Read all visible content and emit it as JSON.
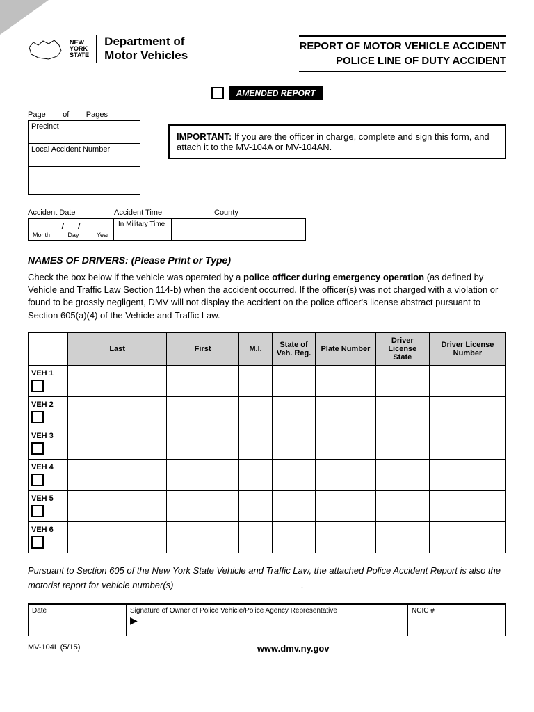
{
  "header": {
    "state_short": "NEW YORK STATE",
    "dept_l1": "Department of",
    "dept_l2": "Motor Vehicles",
    "title_l1": "REPORT OF MOTOR VEHICLE ACCIDENT",
    "title_l2": "POLICE LINE OF DUTY ACCIDENT"
  },
  "amended": "AMENDED REPORT",
  "page_info": {
    "page": "Page",
    "of": "of",
    "pages": "Pages"
  },
  "precinct": {
    "label": "Precinct",
    "lan": "Local Accident Number"
  },
  "important": {
    "bold": "IMPORTANT:",
    "text": "  If you are the officer in charge, complete and sign this form, and attach it to the MV-104A or MV-104AN."
  },
  "date": {
    "label": "Accident Date",
    "month": "Month",
    "day": "Day",
    "year": "Year",
    "slash": "/"
  },
  "time": {
    "label": "Accident Time",
    "sub": "In Military Time"
  },
  "county": {
    "label": "County"
  },
  "drivers_heading": "NAMES OF DRIVERS:  (Please Print or Type)",
  "drivers_desc": {
    "p1": "Check the box below if the vehicle was operated by a ",
    "bold": "police officer during emergency operation",
    "p2": " (as defined by Vehicle and Traffic Law Section 114-b) when the accident occurred. If the officer(s) was not charged with a violation or found to be grossly negligent, DMV will not display the accident on the police officer's license abstract pursuant to Section 605(a)(4) of the Vehicle and Traffic Law."
  },
  "table": {
    "columns": [
      "",
      "Last",
      "First",
      "M.I.",
      "State of Veh. Reg.",
      "Plate Number",
      "Driver License State",
      "Driver License Number"
    ],
    "col_widths": [
      "50px",
      "140px",
      "100px",
      "40px",
      "55px",
      "80px",
      "70px",
      "105px"
    ],
    "rows": [
      "VEH 1",
      "VEH 2",
      "VEH 3",
      "VEH 4",
      "VEH 5",
      "VEH 6"
    ]
  },
  "pursuant": {
    "p1": "Pursuant to Section 605 of the New York State Vehicle and Traffic Law, the attached Police Accident Report is also the motorist report for vehicle number(s) ",
    "p2": "."
  },
  "sig": {
    "date": "Date",
    "sig": "Signature of Owner of Police Vehicle/Police Agency Representative",
    "ncic": "NCIC #"
  },
  "footer": {
    "form": "MV-104L (5/15)",
    "url": "www.dmv.ny.gov"
  }
}
